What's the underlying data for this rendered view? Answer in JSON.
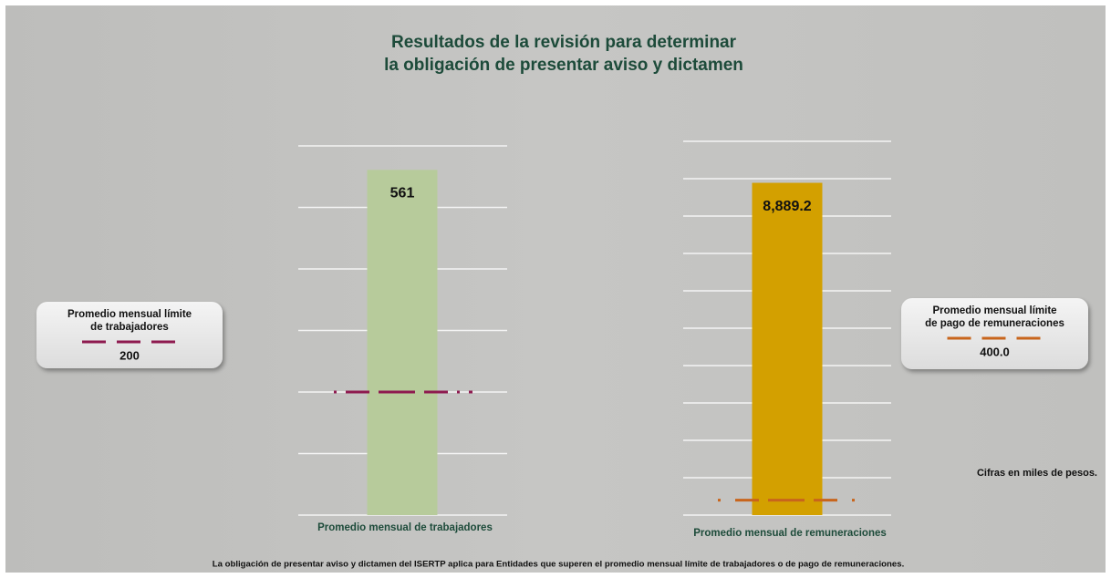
{
  "title": [
    "Resultados de la revisión para determinar",
    "la obligación de presentar aviso y dictamen"
  ],
  "note": "Cifras en miles de pesos.",
  "footnote": "La obligación de presentar aviso y dictamen del ISERTP aplica para Entidades que superen el promedio mensual límite de trabajadores o de pago de remuneraciones.",
  "chart_data": [
    {
      "type": "bar",
      "categories": [
        "Promedio mensual de trabajadores"
      ],
      "values": [
        561
      ],
      "value_labels": [
        "561"
      ],
      "color": "#b7cb9b",
      "ylim": [
        0,
        600
      ],
      "yticks": [
        0,
        100,
        200,
        300,
        400,
        500,
        600
      ],
      "grid": true,
      "threshold": {
        "name": [
          "Promedio mensual límite",
          "de trabajadores"
        ],
        "value": 200,
        "value_label": "200",
        "color": "#8e1a4f"
      }
    },
    {
      "type": "bar",
      "categories": [
        "Promedio mensual de remuneraciones"
      ],
      "values": [
        8889.2
      ],
      "value_labels": [
        "8,889.2"
      ],
      "color": "#d3a000",
      "ylim": [
        0,
        10000
      ],
      "yticks": [
        0,
        1000,
        2000,
        3000,
        4000,
        5000,
        6000,
        7000,
        8000,
        9000,
        10000
      ],
      "grid": true,
      "threshold": {
        "name": [
          "Promedio mensual límite",
          "de pago de remuneraciones"
        ],
        "value": 400,
        "value_label": "400.0",
        "color": "#c8651c"
      }
    }
  ]
}
